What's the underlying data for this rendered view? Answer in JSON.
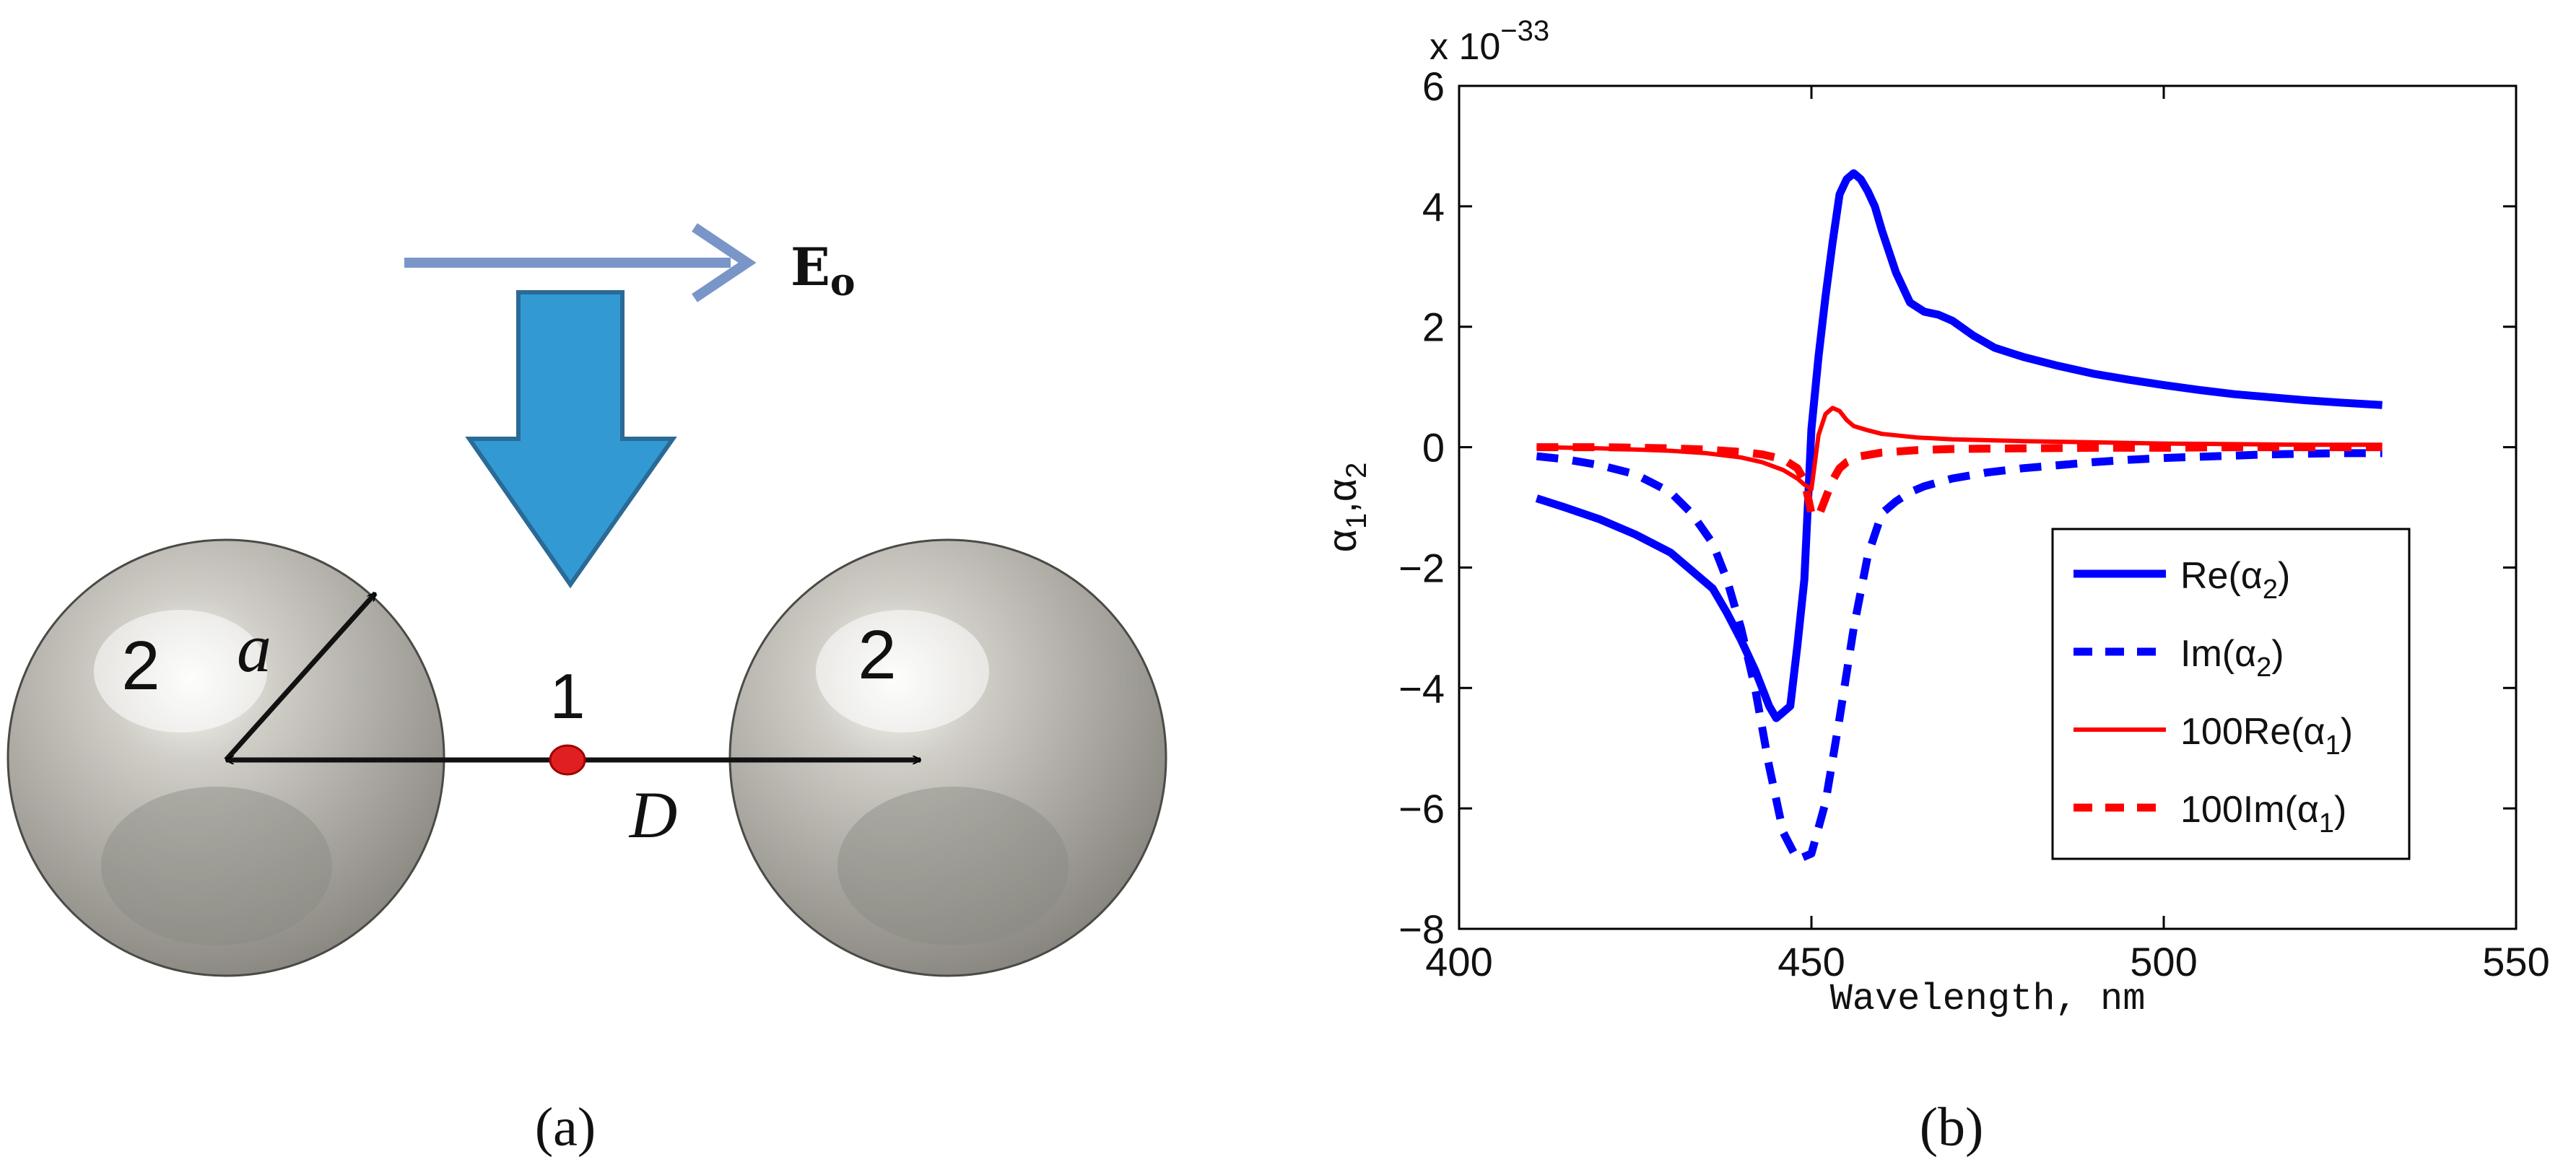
{
  "panel_a": {
    "field_label": "E",
    "field_subscript": "o",
    "sphere_left_label": "2",
    "sphere_right_label": "2",
    "center_label": "1",
    "radius_label": "a",
    "distance_label": "D",
    "caption": "(a)",
    "colors": {
      "field_arrow": "#7a96c8",
      "k_arrow": "#3399d2",
      "k_arrow_edge": "#2a6a96",
      "center_dot": "#e02020"
    }
  },
  "panel_b": {
    "caption": "(b)",
    "scale_label": "x 10",
    "scale_exponent": "−33"
  },
  "chart_data": {
    "type": "line",
    "xlabel": "Wavelength, nm",
    "ylabel_parts": [
      "α",
      "1",
      ",",
      "α",
      "2"
    ],
    "xlim": [
      400,
      550
    ],
    "ylim": [
      -8,
      6
    ],
    "xticks": [
      400,
      450,
      500,
      550
    ],
    "yticks": [
      -8,
      -6,
      -4,
      -2,
      0,
      2,
      4,
      6
    ],
    "grid": false,
    "legend_position": "bottom-right",
    "series": [
      {
        "name": "Re(α2)",
        "legend_text": "Re(α",
        "legend_sub": "2",
        "color": "#0000ff",
        "style": "solid",
        "width": "thick",
        "x": [
          411,
          415,
          420,
          425,
          430,
          433,
          436,
          438,
          440,
          442,
          444,
          445,
          446,
          447,
          448,
          449,
          450,
          451,
          452,
          453,
          454,
          455,
          456,
          457,
          458,
          459,
          460,
          462,
          464,
          466,
          468,
          470,
          473,
          476,
          480,
          485,
          490,
          495,
          500,
          505,
          510,
          515,
          520,
          525,
          531
        ],
        "y": [
          -0.85,
          -1.0,
          -1.2,
          -1.45,
          -1.75,
          -2.05,
          -2.35,
          -2.75,
          -3.2,
          -3.7,
          -4.3,
          -4.5,
          -4.4,
          -4.3,
          -3.3,
          -2.2,
          0.3,
          1.5,
          2.5,
          3.4,
          4.2,
          4.45,
          4.55,
          4.45,
          4.25,
          4.0,
          3.6,
          2.9,
          2.4,
          2.25,
          2.2,
          2.1,
          1.85,
          1.65,
          1.5,
          1.35,
          1.22,
          1.12,
          1.03,
          0.95,
          0.88,
          0.83,
          0.78,
          0.74,
          0.7
        ]
      },
      {
        "name": "Im(α2)",
        "legend_text": "Im(α",
        "legend_sub": "2",
        "color": "#0000ff",
        "style": "dashed",
        "width": "thick",
        "x": [
          411,
          415,
          420,
          425,
          430,
          433,
          436,
          438,
          440,
          442,
          444,
          446,
          448,
          450,
          452,
          454,
          456,
          458,
          460,
          462,
          464,
          466,
          470,
          475,
          480,
          485,
          490,
          495,
          500,
          505,
          510,
          515,
          520,
          525,
          531
        ],
        "y": [
          -0.15,
          -0.2,
          -0.3,
          -0.45,
          -0.75,
          -1.1,
          -1.6,
          -2.2,
          -3.0,
          -4.0,
          -5.3,
          -6.4,
          -6.85,
          -6.75,
          -5.9,
          -4.5,
          -3.0,
          -1.8,
          -1.1,
          -0.9,
          -0.75,
          -0.65,
          -0.52,
          -0.42,
          -0.35,
          -0.3,
          -0.25,
          -0.21,
          -0.18,
          -0.16,
          -0.14,
          -0.12,
          -0.11,
          -0.1,
          -0.1
        ]
      },
      {
        "name": "100Re(α1)",
        "legend_text": "100Re(α",
        "legend_sub": "1",
        "color": "#ff0000",
        "style": "solid",
        "width": "thin",
        "x": [
          411,
          420,
          430,
          435,
          440,
          443,
          446,
          448,
          449,
          450,
          451,
          452,
          453,
          454,
          455,
          456,
          458,
          460,
          465,
          470,
          480,
          490,
          500,
          510,
          520,
          531
        ],
        "y": [
          0.0,
          -0.02,
          -0.06,
          -0.1,
          -0.17,
          -0.25,
          -0.38,
          -0.52,
          -0.62,
          -0.7,
          0.2,
          0.55,
          0.65,
          0.6,
          0.45,
          0.35,
          0.28,
          0.22,
          0.16,
          0.13,
          0.1,
          0.08,
          0.06,
          0.05,
          0.04,
          0.04
        ]
      },
      {
        "name": "100Im(α1)",
        "legend_text": "100Im(α",
        "legend_sub": "1",
        "color": "#ff0000",
        "style": "dashed",
        "width": "thick",
        "x": [
          411,
          420,
          430,
          435,
          440,
          443,
          446,
          448,
          449,
          450,
          451,
          452,
          453,
          454,
          455,
          457,
          460,
          465,
          470,
          480,
          490,
          500,
          510,
          520,
          531
        ],
        "y": [
          0.0,
          0.0,
          -0.02,
          -0.04,
          -0.08,
          -0.12,
          -0.2,
          -0.35,
          -0.55,
          -1.1,
          -1.15,
          -0.85,
          -0.55,
          -0.35,
          -0.25,
          -0.15,
          -0.09,
          -0.05,
          -0.03,
          -0.02,
          -0.01,
          -0.01,
          0.0,
          0.0,
          0.0
        ]
      }
    ]
  }
}
